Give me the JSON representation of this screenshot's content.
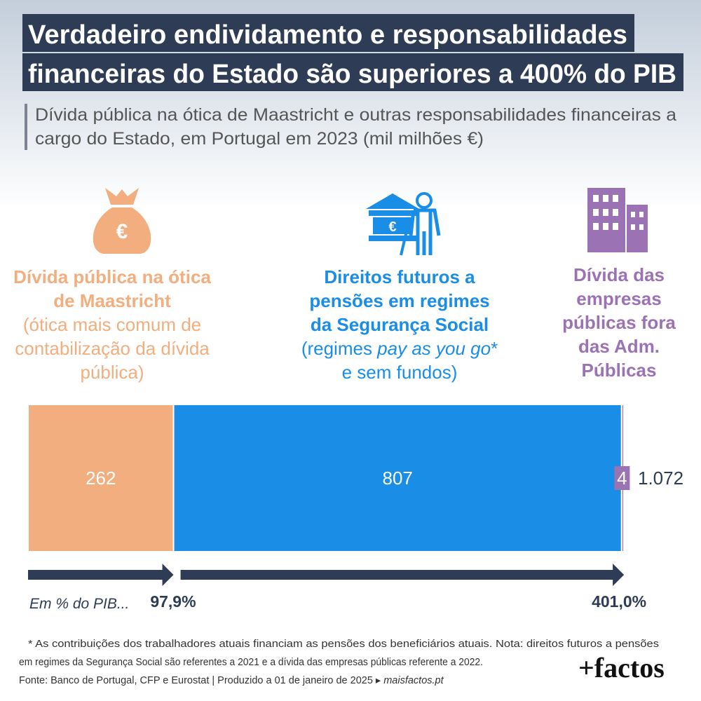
{
  "chart_data": {
    "type": "bar",
    "orientation": "horizontal",
    "stacked": true,
    "title": [
      "Verdadeiro endividamento e responsabilidades",
      "financeiras do Estado são superiores a 400% do PIB"
    ],
    "subtitle": [
      "Dívida pública na ótica de Maastricht e outras responsabilidades financeiras a",
      "cargo do Estado, em Portugal em 2023 (mil milhões €)"
    ],
    "xlim": [
      0,
      1073
    ],
    "series": [
      {
        "name": [
          "Dívida pública na ótica",
          "de Maastricht"
        ],
        "note": [
          "(ótica mais comum de",
          "contabilização da dívida",
          "pública)"
        ],
        "color": "#f2ae7e",
        "values": [
          262
        ]
      },
      {
        "name": [
          "Direitos futuros a",
          "pensões em regimes",
          "da Segurança Social"
        ],
        "note": [
          [
            "(regimes ",
            "pay as you go",
            "*"
          ],
          "e sem fundos)"
        ],
        "color": "#1a8de6",
        "values": [
          807
        ]
      },
      {
        "name": [
          "Dívida das",
          "empresas",
          "públicas fora",
          "das Adm.",
          "Públicas"
        ],
        "color": "#9b72b3",
        "values": [
          4
        ]
      }
    ],
    "total_label": "1.072",
    "pib": {
      "label": "Em % do PIB...",
      "values": [
        97.9,
        401.0
      ],
      "value_labels": [
        "97,9%",
        "401,0%"
      ]
    },
    "footnotes": [
      "* As contribuições dos trabalhadores atuais financiam as pensões dos beneficiários atuais. Nota: direitos futuros a pensões",
      "em regimes da Segurança Social são referentes a 2021 e a dívida das empresas públicas referente a 2022."
    ],
    "source": [
      "Fonte: Banco de Portugal, CFP e Eurostat | Produzido a 01 de janeiro de 2025 ▸ ",
      "maisfactos.pt"
    ],
    "logo": "+factos"
  }
}
